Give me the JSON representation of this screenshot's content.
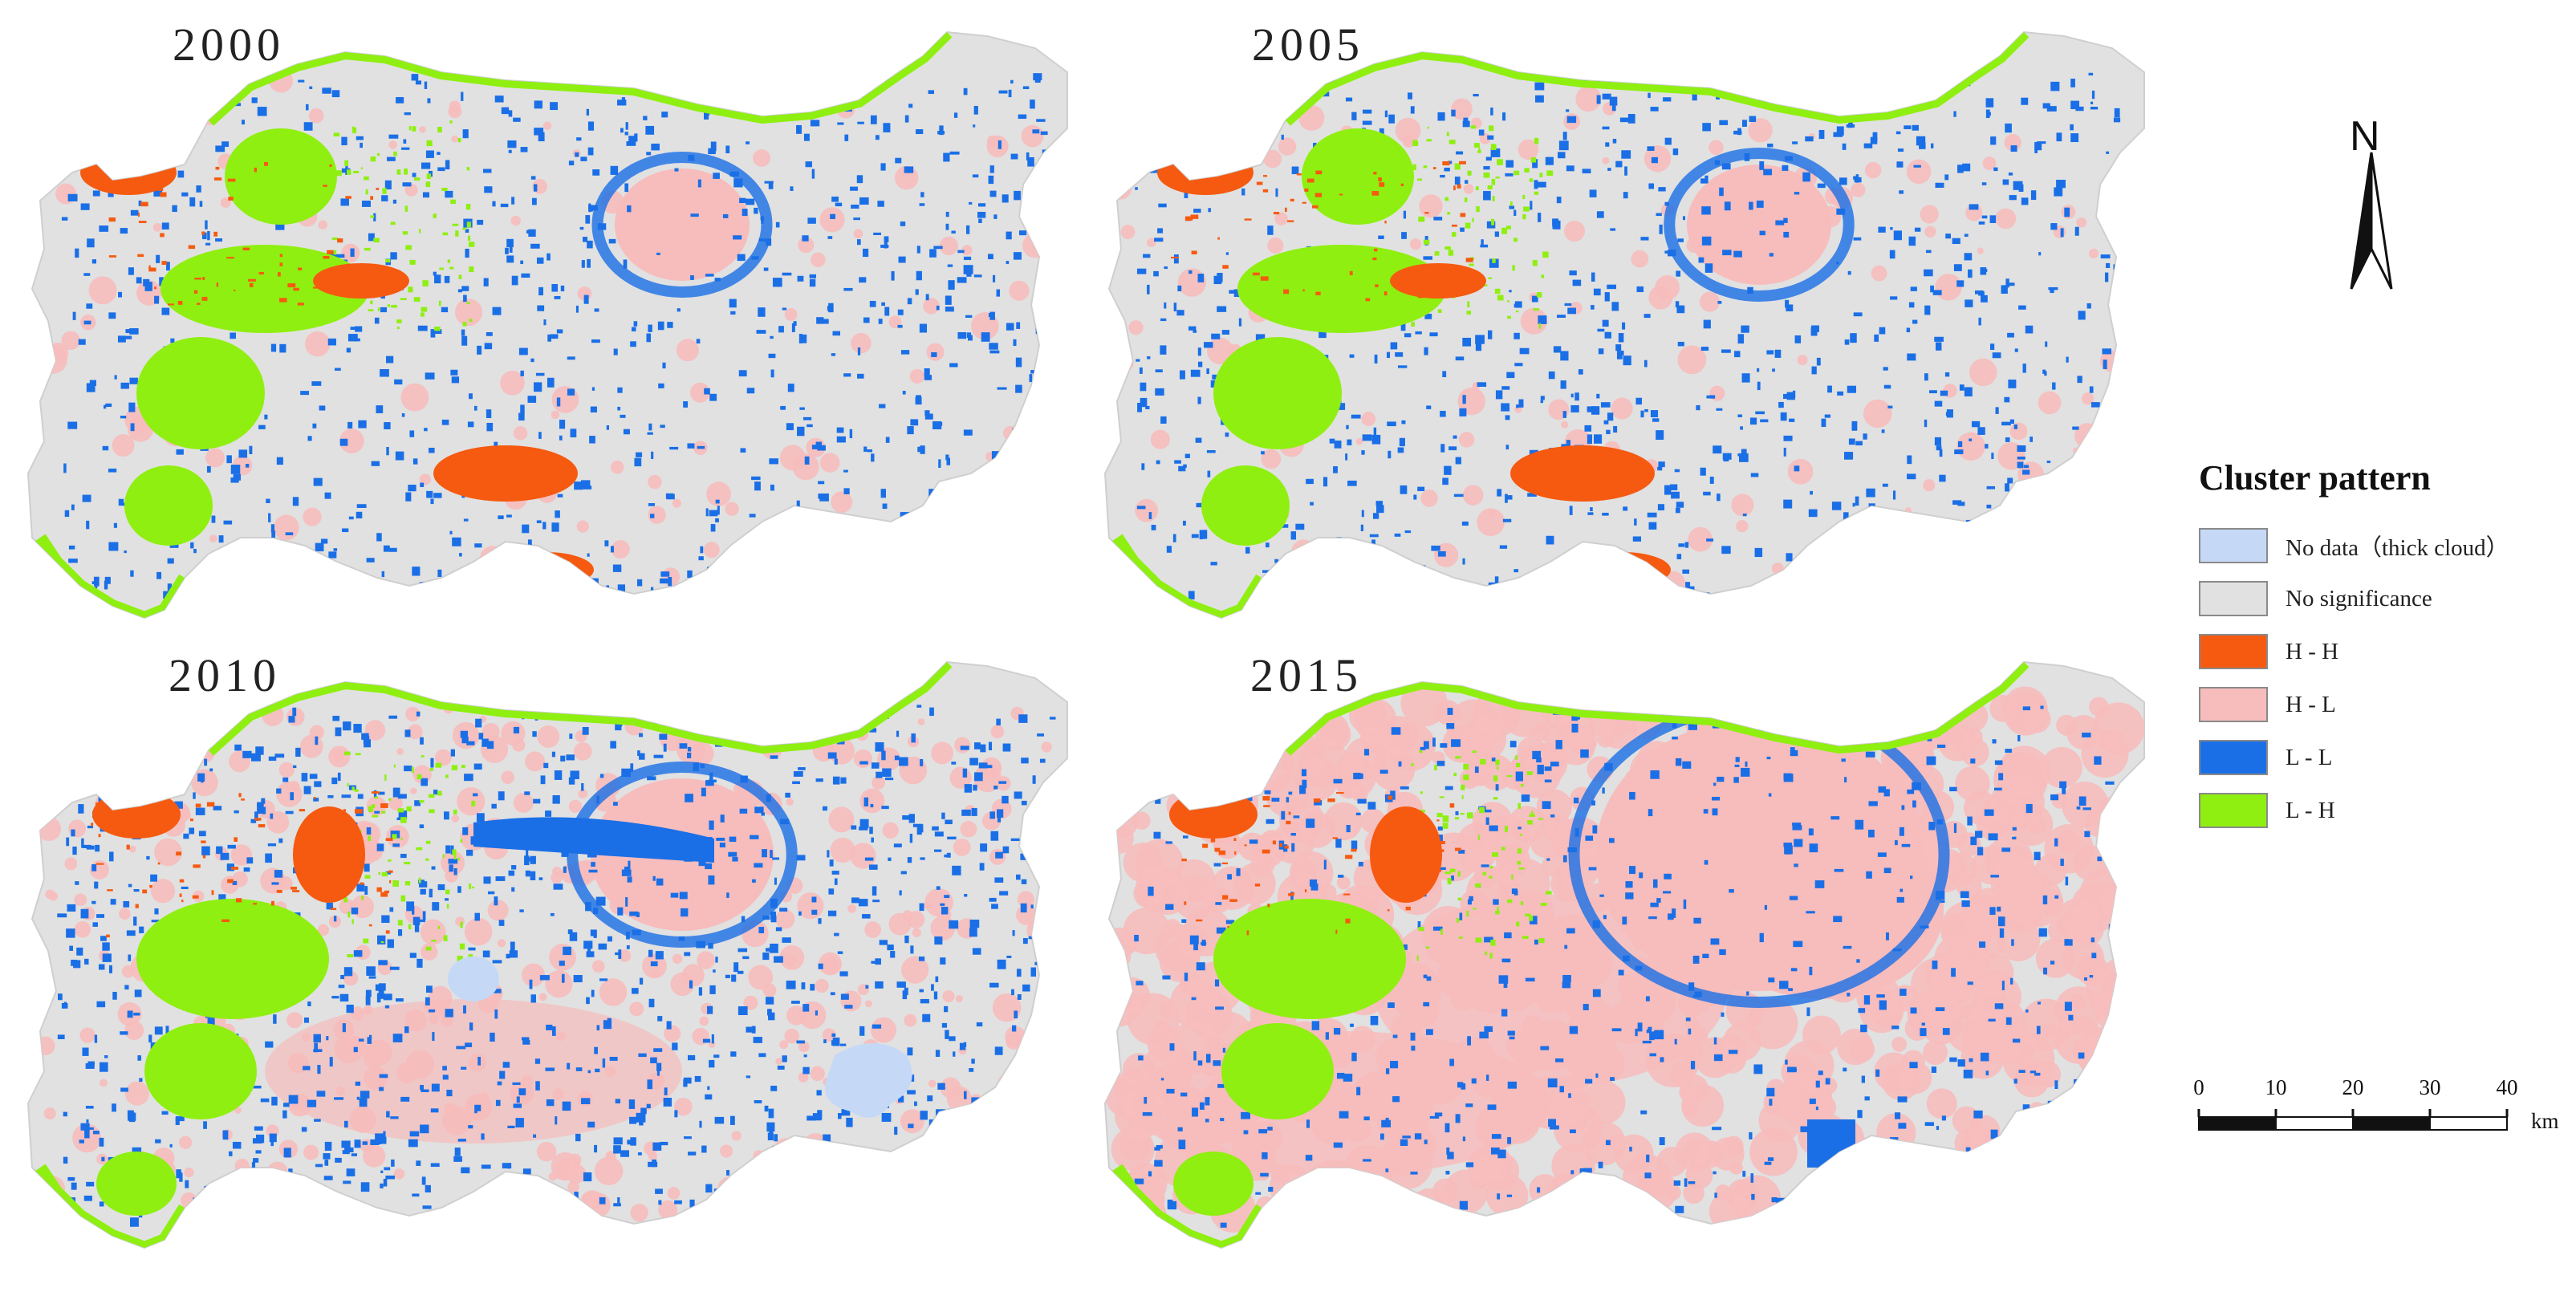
{
  "panels": [
    {
      "id": "p2000",
      "year": "2000"
    },
    {
      "id": "p2005",
      "year": "2005"
    },
    {
      "id": "p2010",
      "year": "2010"
    },
    {
      "id": "p2015",
      "year": "2015"
    }
  ],
  "north": {
    "label": "N"
  },
  "legend": {
    "title": "Cluster pattern",
    "items": [
      {
        "label": "No data（thick cloud）",
        "color": "#c5d9f7"
      },
      {
        "label": "No significance",
        "color": "#e1e1e1"
      },
      {
        "label": "H - H",
        "color": "#f55a10"
      },
      {
        "label": "H - L",
        "color": "#f7bcbc"
      },
      {
        "label": "L - L",
        "color": "#1a6fe6"
      },
      {
        "label": "L - H",
        "color": "#8fef10"
      }
    ]
  },
  "scale": {
    "ticks": [
      "0",
      "10",
      "20",
      "30",
      "40"
    ],
    "unit": "km"
  }
}
